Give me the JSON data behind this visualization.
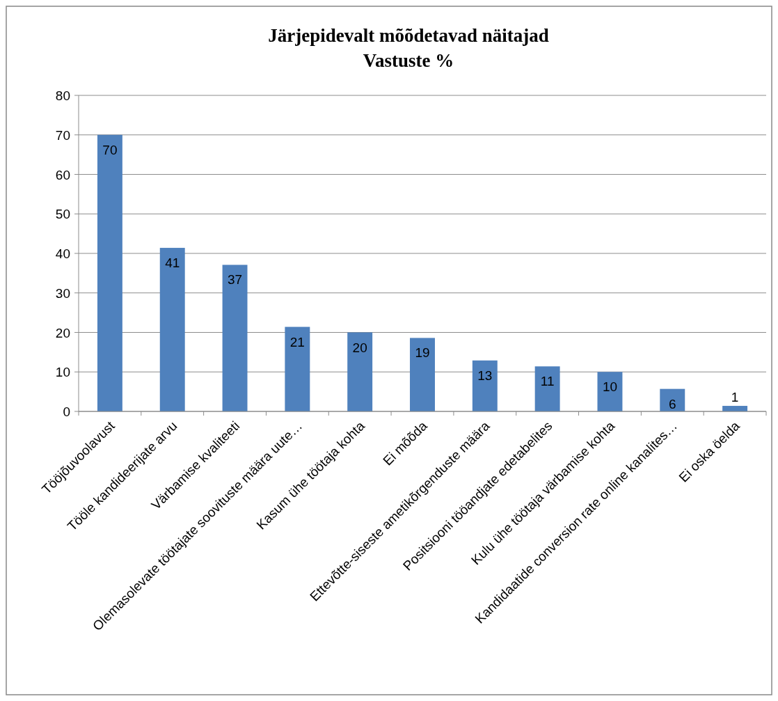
{
  "chart_data": {
    "type": "bar",
    "title": "Järjepidevalt mõõdetavad näitajad",
    "subtitle": "Vastuste %",
    "categories": [
      "Tööjõuvoolavust",
      "Tööle kandideerijate arvu",
      "Värbamise kvaliteeti",
      "Olemasolevate töötajate soovituste määra uute…",
      "Kasum ühe töötaja kohta",
      "Ei mõõda",
      "Ettevõtte-siseste ametikõrgenduste määra",
      "Positsiooni tööandjate edetabelites",
      "Kulu ühe töötaja värbamise kohta",
      "Kandidaatide conversion rate online kanalites…",
      "Ei oska öelda"
    ],
    "values": [
      70,
      41.4,
      37.1,
      21.4,
      20,
      18.6,
      12.9,
      11.4,
      10,
      5.7,
      1.4
    ],
    "value_labels": [
      "70",
      "41",
      "37",
      "21",
      "20",
      "19",
      "13",
      "11",
      "10",
      "6",
      "1"
    ],
    "color": "#4f81bd",
    "ylim": [
      0,
      80
    ],
    "yticks": [
      0,
      10,
      20,
      30,
      40,
      50,
      60,
      70,
      80
    ],
    "grid": "y"
  }
}
